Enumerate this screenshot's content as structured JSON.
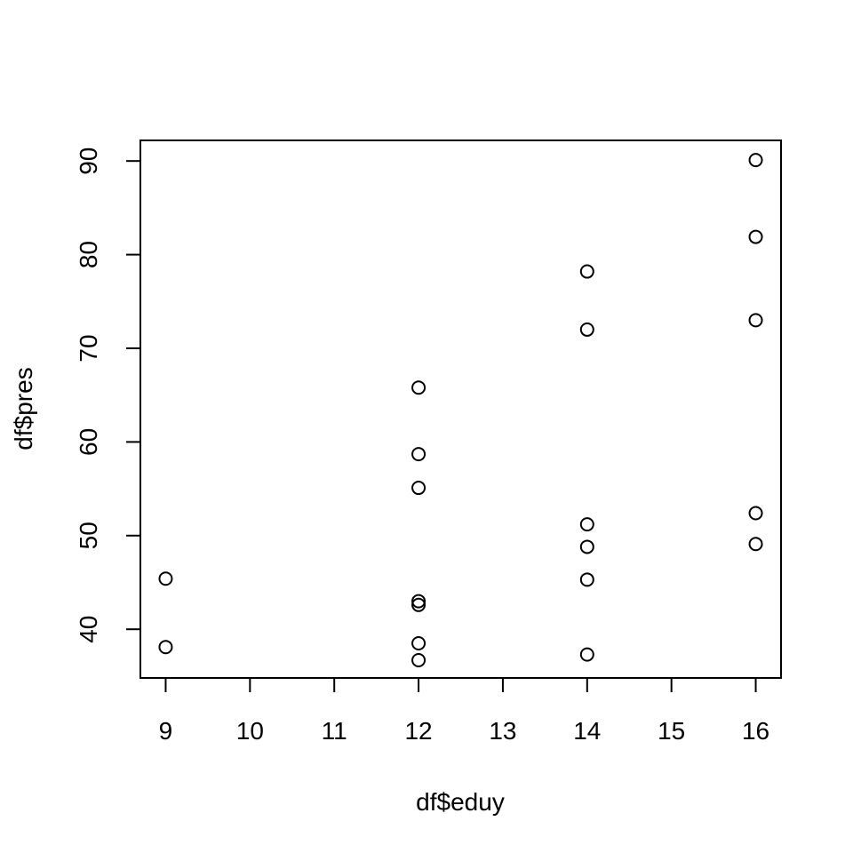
{
  "chart_data": {
    "type": "scatter",
    "title": "",
    "xlabel": "df$eduy",
    "ylabel": "df$pres",
    "xlim": [
      8.7,
      16.3
    ],
    "ylim": [
      34.8,
      92.2
    ],
    "xticks": [
      9,
      10,
      11,
      12,
      13,
      14,
      15,
      16
    ],
    "yticks": [
      40,
      50,
      60,
      70,
      80,
      90
    ],
    "grid": false,
    "legend": "none",
    "marker": "open-circle",
    "colors": {
      "point": "#000000",
      "axis": "#000000",
      "background": "#ffffff"
    },
    "points": [
      {
        "x": 9,
        "y": 45.4
      },
      {
        "x": 9,
        "y": 38.1
      },
      {
        "x": 12,
        "y": 65.8
      },
      {
        "x": 12,
        "y": 58.7
      },
      {
        "x": 12,
        "y": 55.1
      },
      {
        "x": 12,
        "y": 43.0
      },
      {
        "x": 12,
        "y": 42.6
      },
      {
        "x": 12,
        "y": 38.5
      },
      {
        "x": 12,
        "y": 36.7
      },
      {
        "x": 14,
        "y": 78.2
      },
      {
        "x": 14,
        "y": 72.0
      },
      {
        "x": 14,
        "y": 51.2
      },
      {
        "x": 14,
        "y": 48.8
      },
      {
        "x": 14,
        "y": 45.3
      },
      {
        "x": 14,
        "y": 37.3
      },
      {
        "x": 16,
        "y": 90.1
      },
      {
        "x": 16,
        "y": 81.9
      },
      {
        "x": 16,
        "y": 73.0
      },
      {
        "x": 16,
        "y": 52.4
      },
      {
        "x": 16,
        "y": 49.1
      }
    ]
  }
}
